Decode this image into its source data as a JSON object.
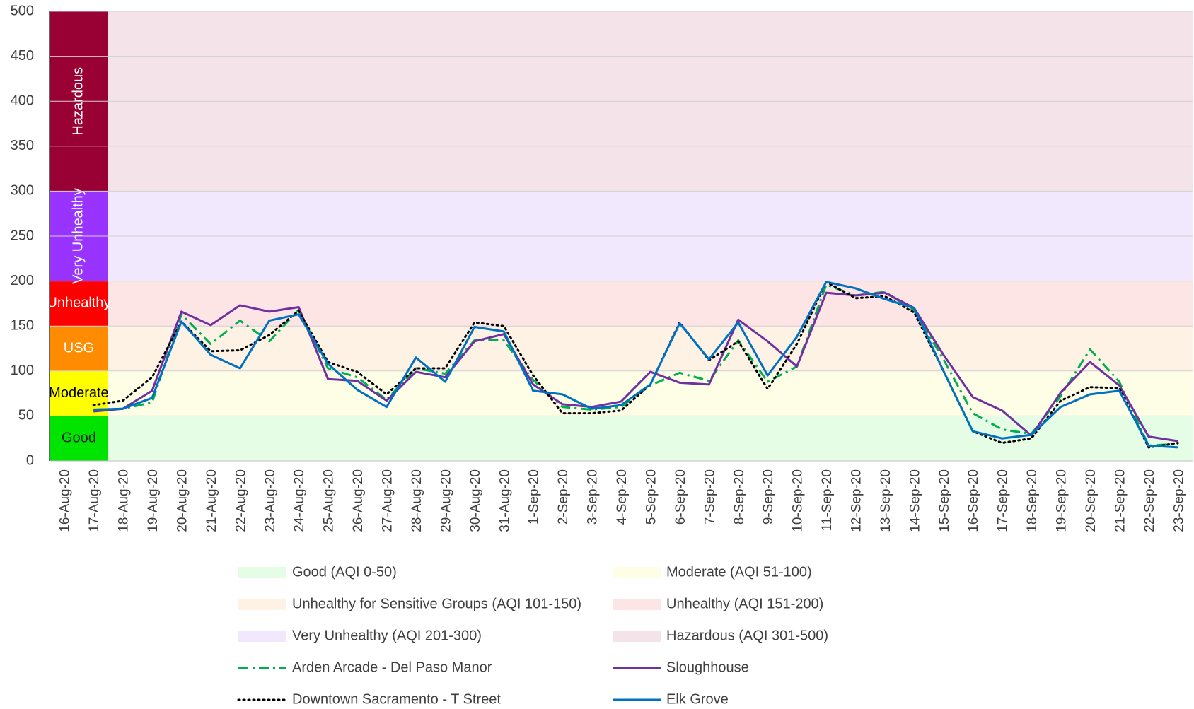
{
  "chart_data": {
    "type": "line",
    "categories": [
      "16-Aug-20",
      "17-Aug-20",
      "18-Aug-20",
      "19-Aug-20",
      "20-Aug-20",
      "21-Aug-20",
      "22-Aug-20",
      "23-Aug-20",
      "24-Aug-20",
      "25-Aug-20",
      "26-Aug-20",
      "27-Aug-20",
      "28-Aug-20",
      "29-Aug-20",
      "30-Aug-20",
      "31-Aug-20",
      "1-Sep-20",
      "2-Sep-20",
      "3-Sep-20",
      "4-Sep-20",
      "5-Sep-20",
      "6-Sep-20",
      "7-Sep-20",
      "8-Sep-20",
      "9-Sep-20",
      "10-Sep-20",
      "11-Sep-20",
      "12-Sep-20",
      "13-Sep-20",
      "14-Sep-20",
      "15-Sep-20",
      "16-Sep-20",
      "17-Sep-20",
      "18-Sep-20",
      "19-Sep-20",
      "20-Sep-20",
      "21-Sep-20",
      "22-Sep-20",
      "23-Sep-20"
    ],
    "bands": [
      {
        "name": "Good (AQI 0-50)",
        "label": "Good",
        "value": 50,
        "color": "#e5fce5",
        "strong_color": "#00e400",
        "label_color": "#222222"
      },
      {
        "name": "Moderate (AQI 51-100)",
        "label": "Moderate",
        "value": 50,
        "color": "#fefde5",
        "strong_color": "#ffff00",
        "label_color": "#000000"
      },
      {
        "name": "Unhealthy for Sensitive Groups (AQI 101-150)",
        "label": "USG",
        "value": 50,
        "color": "#fef2e5",
        "strong_color": "#ff8c00",
        "label_color": "#ffffff"
      },
      {
        "name": "Unhealthy (AQI 151-200)",
        "label": "Unhealthy",
        "value": 50,
        "color": "#fde5e5",
        "strong_color": "#ff0000",
        "label_color": "#ffffff"
      },
      {
        "name": "Very Unhealthy (AQI 201-300)",
        "label": "Very Unhealthy",
        "value": 100,
        "color": "#f2e8fd",
        "strong_color": "#9933ff",
        "label_color": "#ffffff"
      },
      {
        "name": "Hazardous (AQI 301-500)",
        "label": "Hazardous",
        "value": 200,
        "color": "#f4e4ea",
        "strong_color": "#990033",
        "label_color": "#ffffff"
      }
    ],
    "series": [
      {
        "name": "Arden Arcade - Del Paso Manor",
        "color": "#00b050",
        "style": "dash-dot",
        "values": [
          null,
          57,
          58,
          65,
          163,
          130,
          156,
          133,
          168,
          103,
          93,
          68,
          103,
          97,
          134,
          134,
          90,
          60,
          57,
          60,
          84,
          98,
          89,
          134,
          88,
          105,
          196,
          184,
          188,
          167,
          113,
          53,
          35,
          30,
          72,
          124,
          88,
          17,
          19
        ]
      },
      {
        "name": "Sloughhouse",
        "color": "#7030a0",
        "style": "solid",
        "values": [
          null,
          55,
          58,
          78,
          166,
          151,
          173,
          166,
          171,
          91,
          89,
          67,
          99,
          93,
          133,
          141,
          85,
          63,
          60,
          66,
          99,
          87,
          85,
          157,
          133,
          105,
          187,
          184,
          187,
          170,
          118,
          71,
          56,
          28,
          76,
          110,
          84,
          27,
          22
        ]
      },
      {
        "name": "Downtown Sacramento - T Street",
        "color": "#000000",
        "style": "dotted",
        "values": [
          null,
          62,
          67,
          93,
          155,
          122,
          123,
          140,
          167,
          110,
          99,
          74,
          103,
          103,
          154,
          150,
          95,
          53,
          53,
          56,
          85,
          154,
          112,
          133,
          80,
          130,
          199,
          181,
          183,
          165,
          100,
          33,
          20,
          25,
          67,
          82,
          81,
          15,
          20
        ]
      },
      {
        "name": "Elk Grove",
        "color": "#0070c0",
        "style": "solid",
        "values": [
          null,
          57,
          58,
          70,
          155,
          118,
          103,
          156,
          163,
          108,
          79,
          60,
          115,
          88,
          149,
          144,
          78,
          74,
          58,
          62,
          85,
          153,
          113,
          154,
          95,
          138,
          199,
          192,
          180,
          170,
          100,
          33,
          25,
          29,
          60,
          74,
          78,
          17,
          15
        ]
      }
    ],
    "ylim": [
      0,
      500
    ],
    "yticks": [
      0,
      50,
      100,
      150,
      200,
      250,
      300,
      350,
      400,
      450,
      500
    ],
    "grid": true
  }
}
